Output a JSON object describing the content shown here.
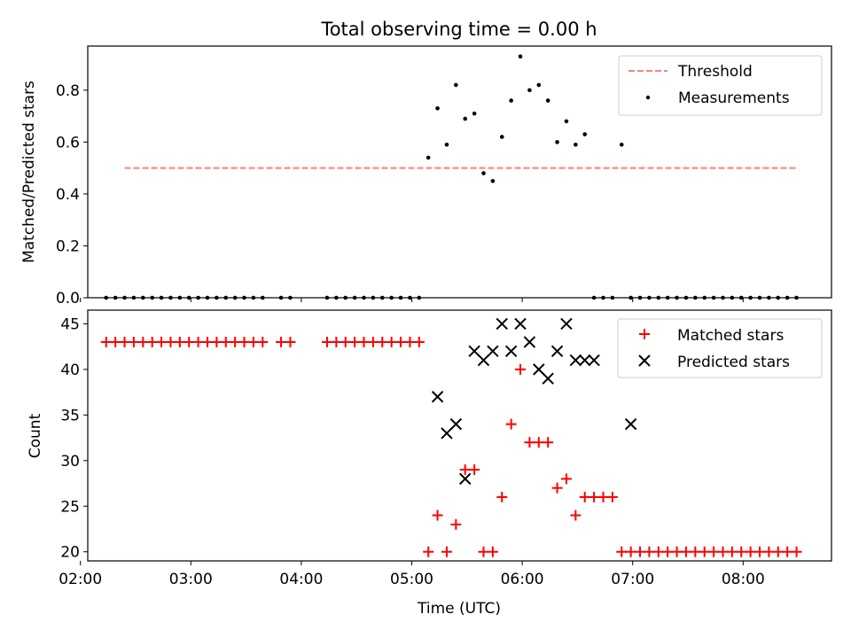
{
  "chart_data": [
    {
      "type": "scatter",
      "title": "Total observing time = 0.00 h",
      "xlabel": "",
      "ylabel": "Matched/Predicted stars",
      "xlim": [
        "02:04",
        "08:48"
      ],
      "ylim": [
        0,
        0.97
      ],
      "yticks": [
        0.0,
        0.2,
        0.4,
        0.6,
        0.8
      ],
      "ytick_labels": [
        "0.0",
        "0.2",
        "0.4",
        "0.6",
        "0.8"
      ],
      "legend": {
        "position": "top-right",
        "entries": [
          "Threshold",
          "Measurements"
        ]
      },
      "series": [
        {
          "name": "Threshold",
          "kind": "dashed-line",
          "color": "#ff7f7f",
          "x": [
            "02:24",
            "08:30"
          ],
          "y": [
            0.5,
            0.5
          ]
        },
        {
          "name": "Measurements",
          "kind": "dots",
          "color": "#000000",
          "x": [
            "02:14",
            "02:19",
            "02:24",
            "02:29",
            "02:34",
            "02:39",
            "02:44",
            "02:49",
            "02:54",
            "02:59",
            "03:04",
            "03:09",
            "03:14",
            "03:19",
            "03:24",
            "03:29",
            "03:34",
            "03:39",
            "03:49",
            "03:54",
            "04:14",
            "04:19",
            "04:24",
            "04:29",
            "04:34",
            "04:39",
            "04:44",
            "04:49",
            "04:54",
            "04:59",
            "05:04",
            "05:09",
            "05:14",
            "05:19",
            "05:24",
            "05:29",
            "05:34",
            "05:39",
            "05:44",
            "05:49",
            "05:54",
            "05:59",
            "06:04",
            "06:09",
            "06:14",
            "06:19",
            "06:24",
            "06:29",
            "06:34",
            "06:39",
            "06:44",
            "06:49",
            "06:54",
            "06:59",
            "07:04",
            "07:09",
            "07:14",
            "07:19",
            "07:24",
            "07:29",
            "07:34",
            "07:39",
            "07:44",
            "07:49",
            "07:54",
            "07:59",
            "08:04",
            "08:09",
            "08:14",
            "08:19",
            "08:24",
            "08:29"
          ],
          "y": [
            0,
            0,
            0,
            0,
            0,
            0,
            0,
            0,
            0,
            0,
            0,
            0,
            0,
            0,
            0,
            0,
            0,
            0,
            0,
            0,
            0,
            0,
            0,
            0,
            0,
            0,
            0,
            0,
            0,
            0,
            0,
            0.54,
            0.73,
            0.59,
            0.82,
            0.69,
            0.71,
            0.48,
            0.45,
            0.62,
            0.76,
            0.93,
            0.8,
            0.82,
            0.76,
            0.6,
            0.68,
            0.59,
            0.63,
            0,
            0,
            0,
            0.59,
            0,
            0,
            0,
            0,
            0,
            0,
            0,
            0,
            0,
            0,
            0,
            0,
            0,
            0,
            0,
            0,
            0,
            0,
            0
          ]
        }
      ]
    },
    {
      "type": "scatter",
      "title": "",
      "xlabel": "Time (UTC)",
      "ylabel": "Count",
      "xlim": [
        "02:04",
        "08:48"
      ],
      "ylim": [
        19,
        46.5
      ],
      "xticks": [
        "02:00",
        "03:00",
        "04:00",
        "05:00",
        "06:00",
        "07:00",
        "08:00"
      ],
      "xtick_labels": [
        "02:00",
        "03:00",
        "04:00",
        "05:00",
        "06:00",
        "07:00",
        "08:00"
      ],
      "yticks": [
        20,
        25,
        30,
        35,
        40,
        45
      ],
      "ytick_labels": [
        "20",
        "25",
        "30",
        "35",
        "40",
        "45"
      ],
      "legend": {
        "position": "top-right",
        "entries": [
          "Matched stars",
          "Predicted stars"
        ]
      },
      "series": [
        {
          "name": "Matched stars",
          "kind": "plus",
          "color": "#ff0000",
          "x": [
            "02:14",
            "02:19",
            "02:24",
            "02:29",
            "02:34",
            "02:39",
            "02:44",
            "02:49",
            "02:54",
            "02:59",
            "03:04",
            "03:09",
            "03:14",
            "03:19",
            "03:24",
            "03:29",
            "03:34",
            "03:39",
            "03:49",
            "03:54",
            "04:14",
            "04:19",
            "04:24",
            "04:29",
            "04:34",
            "04:39",
            "04:44",
            "04:49",
            "04:54",
            "04:59",
            "05:04",
            "05:09",
            "05:14",
            "05:19",
            "05:24",
            "05:29",
            "05:34",
            "05:39",
            "05:44",
            "05:49",
            "05:54",
            "05:59",
            "06:04",
            "06:09",
            "06:14",
            "06:19",
            "06:24",
            "06:29",
            "06:34",
            "06:39",
            "06:44",
            "06:49",
            "06:54",
            "06:59",
            "07:04",
            "07:09",
            "07:14",
            "07:19",
            "07:24",
            "07:29",
            "07:34",
            "07:39",
            "07:44",
            "07:49",
            "07:54",
            "07:59",
            "08:04",
            "08:09",
            "08:14",
            "08:19",
            "08:24",
            "08:29"
          ],
          "y": [
            43,
            43,
            43,
            43,
            43,
            43,
            43,
            43,
            43,
            43,
            43,
            43,
            43,
            43,
            43,
            43,
            43,
            43,
            43,
            43,
            43,
            43,
            43,
            43,
            43,
            43,
            43,
            43,
            43,
            43,
            43,
            20,
            24,
            20,
            23,
            29,
            29,
            20,
            20,
            26,
            34,
            40,
            32,
            32,
            32,
            27,
            28,
            24,
            26,
            26,
            26,
            26,
            20,
            20,
            20,
            20,
            20,
            20,
            20,
            20,
            20,
            20,
            20,
            20,
            20,
            20,
            20,
            20,
            20,
            20,
            20,
            20
          ]
        },
        {
          "name": "Predicted stars",
          "kind": "x",
          "color": "#000000",
          "x": [
            "05:14",
            "05:19",
            "05:24",
            "05:29",
            "05:34",
            "05:39",
            "05:44",
            "05:49",
            "05:54",
            "05:59",
            "06:04",
            "06:09",
            "06:14",
            "06:19",
            "06:24",
            "06:29",
            "06:34",
            "06:39",
            "06:59"
          ],
          "y": [
            37,
            33,
            34,
            28,
            42,
            41,
            42,
            45,
            42,
            45,
            43,
            40,
            39,
            42,
            45,
            41,
            41,
            41,
            34
          ]
        }
      ]
    }
  ]
}
